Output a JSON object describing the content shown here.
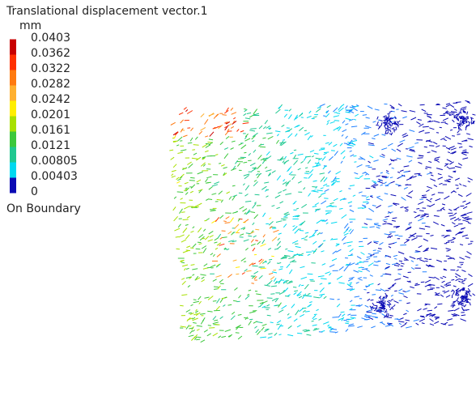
{
  "legend": {
    "title": "Translational displacement vector.1",
    "unit": "mm",
    "labels": [
      "0.0403",
      "0.0362",
      "0.0322",
      "0.0282",
      "0.0242",
      "0.0201",
      "0.0161",
      "0.0121",
      "0.00805",
      "0.00403",
      "0"
    ],
    "colors": [
      "#c80000",
      "#ff3000",
      "#ff7a10",
      "#ffb030",
      "#ffee00",
      "#a8e000",
      "#3cc83c",
      "#20c890",
      "#00d8f0",
      "#2080ff",
      "#0a0ab4"
    ],
    "footer": "On Boundary"
  }
}
